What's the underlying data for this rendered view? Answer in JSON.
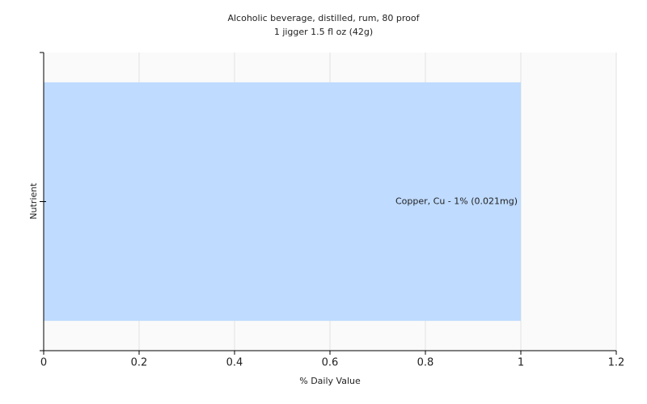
{
  "chart_data": {
    "type": "hbar",
    "title": "Alcoholic beverage, distilled, rum, 80 proof",
    "subtitle": "1 jigger 1.5 fl oz (42g)",
    "x_label": "% Daily Value",
    "y_label": "Nutrient",
    "categories": [
      null
    ],
    "values": [
      1
    ],
    "value_labels": [
      "Copper, Cu - 1% (0.021mg)"
    ],
    "color": "#bfdbff",
    "xlim": [
      0,
      1.2
    ],
    "xticks": [
      0,
      0.2,
      0.4,
      0.6,
      0.8,
      1,
      1.2
    ],
    "grid": true
  }
}
